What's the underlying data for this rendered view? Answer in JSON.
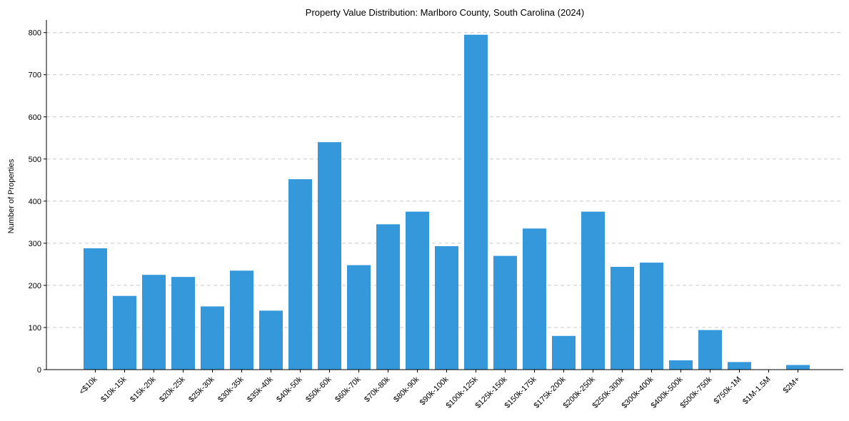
{
  "chart_data": {
    "type": "bar",
    "title": "Property Value Distribution: Marlboro County, South Carolina (2024)",
    "xlabel": "",
    "ylabel": "Number of Properties",
    "ylim": [
      0,
      830
    ],
    "yticks": [
      0,
      100,
      200,
      300,
      400,
      500,
      600,
      700,
      800
    ],
    "grid": "y-dashed",
    "color": "#3498db",
    "categories": [
      "<$10k",
      "$10k-15k",
      "$15k-20k",
      "$20k-25k",
      "$25k-30k",
      "$30k-35k",
      "$35k-40k",
      "$40k-50k",
      "$50k-60k",
      "$60k-70k",
      "$70k-80k",
      "$80k-90k",
      "$90k-100k",
      "$100k-125k",
      "$125k-150k",
      "$150k-175k",
      "$175k-200k",
      "$200k-250k",
      "$250k-300k",
      "$300k-400k",
      "$400k-500k",
      "$500k-750k",
      "$750k-1M",
      "$1M-1.5M",
      "$2M+"
    ],
    "values": [
      288,
      175,
      225,
      220,
      150,
      235,
      140,
      452,
      540,
      248,
      345,
      375,
      293,
      795,
      270,
      335,
      80,
      375,
      244,
      254,
      22,
      94,
      18,
      0,
      11
    ]
  }
}
